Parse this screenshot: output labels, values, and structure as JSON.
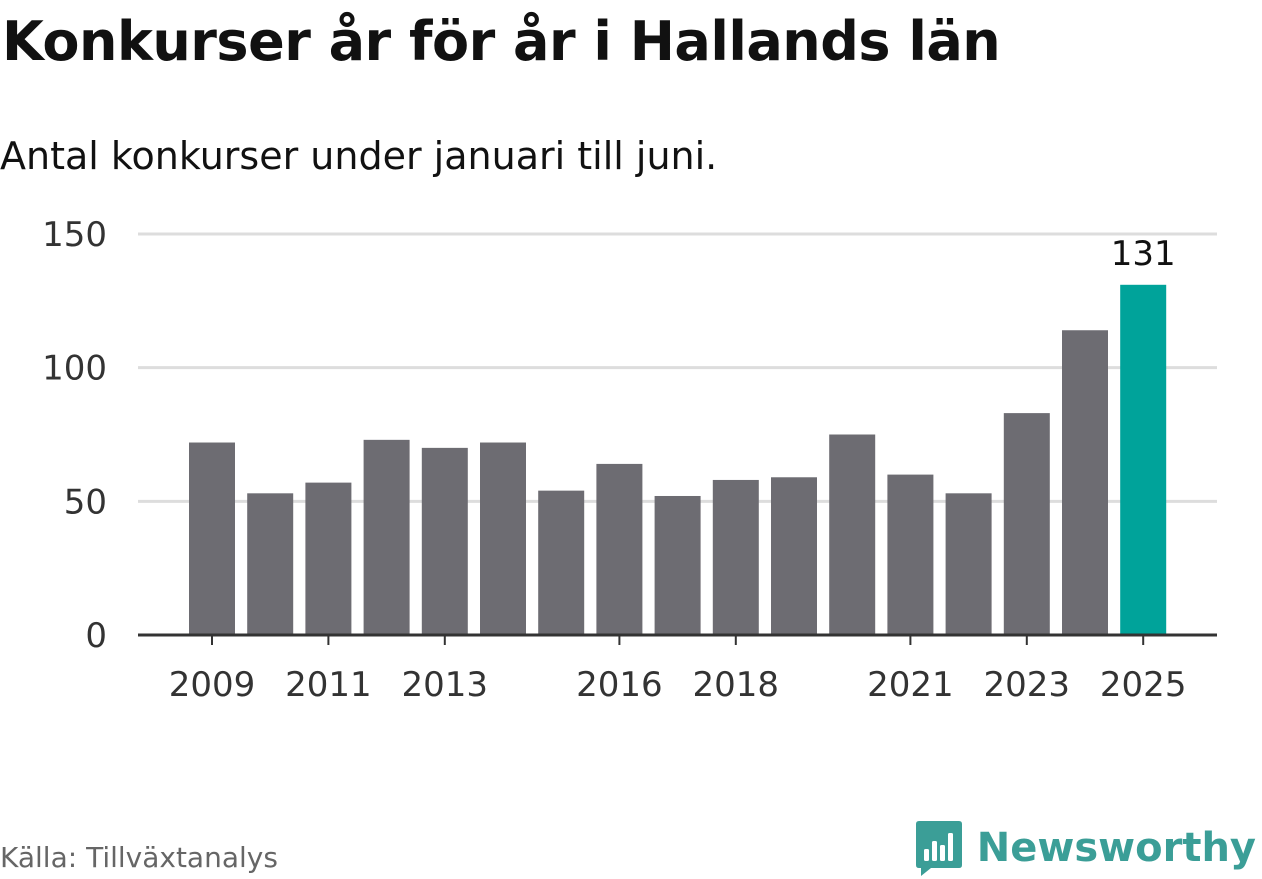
{
  "title": "Konkurser år för år i Hallands län",
  "subtitle": "Antal konkurser under januari till juni.",
  "source": "Källa: Tillväxtanalys",
  "brand": {
    "name": "Newsworthy",
    "icon": "newsworthy-logo-icon",
    "color": "#3b9e97"
  },
  "colors": {
    "bar": "#6d6c72",
    "highlight": "#00a39a",
    "grid": "#dddddd",
    "axis": "#333333"
  },
  "chart_data": {
    "type": "bar",
    "categories": [
      "2009",
      "2010",
      "2011",
      "2012",
      "2013",
      "2014",
      "2015",
      "2016",
      "2017",
      "2018",
      "2019",
      "2020",
      "2021",
      "2022",
      "2023",
      "2024",
      "2025"
    ],
    "values": [
      72,
      53,
      57,
      73,
      70,
      72,
      54,
      64,
      52,
      58,
      59,
      75,
      60,
      53,
      83,
      114,
      131
    ],
    "title": "Konkurser år för år i Hallands län",
    "subtitle": "Antal konkurser under januari till juni.",
    "xlabel": "",
    "ylabel": "",
    "ylim": [
      0,
      150
    ],
    "yticks": [
      0,
      50,
      100,
      150
    ],
    "xtick_labels": [
      "2009",
      "2011",
      "2013",
      "2016",
      "2018",
      "2021",
      "2023",
      "2025"
    ],
    "highlight": {
      "category": "2025",
      "label": "131"
    },
    "grid": true,
    "legend": "none"
  }
}
